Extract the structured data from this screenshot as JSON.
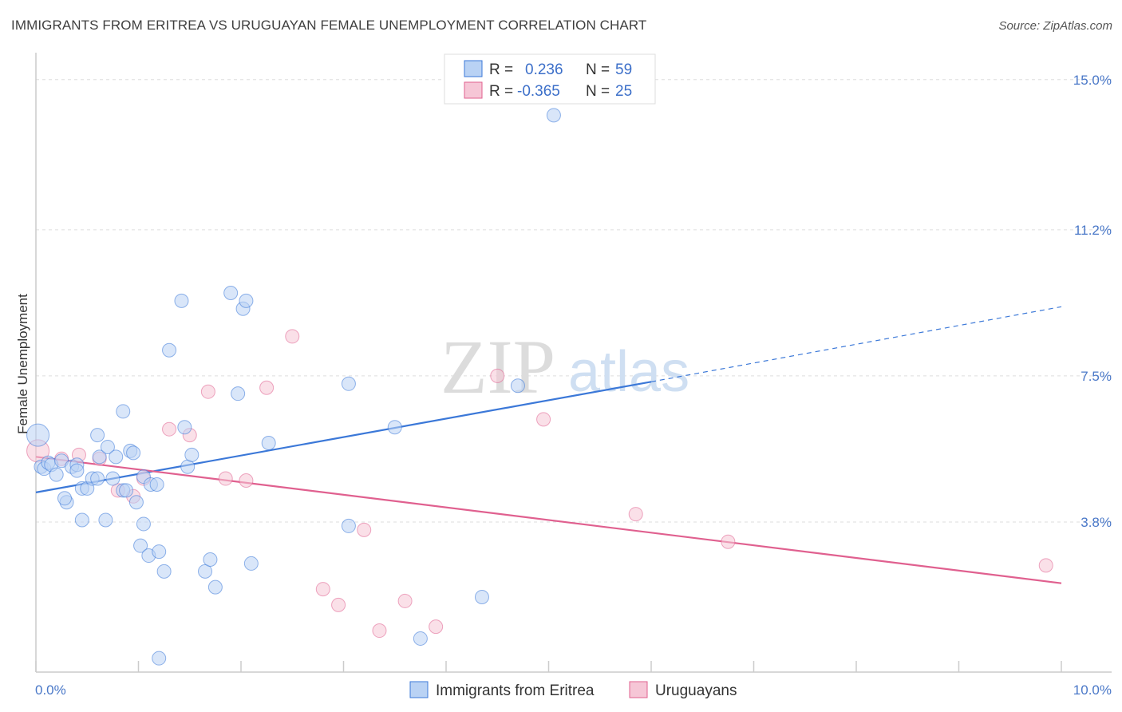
{
  "title": "IMMIGRANTS FROM ERITREA VS URUGUAYAN FEMALE UNEMPLOYMENT CORRELATION CHART",
  "source": "Source: ZipAtlas.com",
  "watermark": {
    "zip": "ZIP",
    "atlas": "atlas"
  },
  "colors": {
    "blue": "#3b78d8",
    "blue_fill": "#b9d2f4",
    "pink": "#e0608f",
    "pink_fill": "#f6c6d6",
    "grid": "#d9d9d9",
    "axis_text": "#4a78c8"
  },
  "legend": {
    "rows": [
      {
        "r_label": "R =",
        "r_value": "0.236",
        "n_label": "N =",
        "n_value": "59"
      },
      {
        "r_label": "R =",
        "r_value": "-0.365",
        "n_label": "N =",
        "n_value": "25"
      }
    ]
  },
  "chart_data": {
    "type": "scatter",
    "title": "IMMIGRANTS FROM ERITREA VS URUGUAYAN FEMALE UNEMPLOYMENT CORRELATION CHART",
    "xlabel": "",
    "ylabel": "Female Unemployment",
    "xlim": [
      0,
      10
    ],
    "ylim": [
      0,
      15.4
    ],
    "x_tick_labels": [
      "0.0%",
      "10.0%"
    ],
    "y_ticks": [
      3.8,
      7.5,
      11.2,
      15.0
    ],
    "y_tick_labels": [
      "3.8%",
      "7.5%",
      "11.2%",
      "15.0%"
    ],
    "series": [
      {
        "name": "Immigrants from Eritrea",
        "color": "#3b78d8",
        "trend": {
          "x0": 0,
          "y0": 4.55,
          "x1": 6.0,
          "y1": 7.35,
          "dash_x1": 10.0,
          "dash_y1": 9.25
        },
        "points": [
          [
            0.05,
            5.2
          ],
          [
            0.08,
            5.15
          ],
          [
            0.12,
            5.3
          ],
          [
            0.15,
            5.25
          ],
          [
            0.2,
            5.0
          ],
          [
            0.25,
            5.35
          ],
          [
            0.3,
            4.3
          ],
          [
            0.28,
            4.4
          ],
          [
            0.35,
            5.2
          ],
          [
            0.4,
            5.25
          ],
          [
            0.4,
            5.1
          ],
          [
            0.45,
            4.65
          ],
          [
            0.5,
            4.65
          ],
          [
            0.45,
            3.85
          ],
          [
            0.55,
            4.9
          ],
          [
            0.6,
            4.9
          ],
          [
            0.6,
            6.0
          ],
          [
            0.62,
            5.45
          ],
          [
            0.68,
            3.85
          ],
          [
            0.7,
            5.7
          ],
          [
            0.75,
            4.9
          ],
          [
            0.78,
            5.45
          ],
          [
            0.85,
            4.6
          ],
          [
            0.85,
            6.6
          ],
          [
            0.88,
            4.6
          ],
          [
            0.92,
            5.6
          ],
          [
            0.95,
            5.55
          ],
          [
            0.98,
            4.3
          ],
          [
            1.02,
            3.2
          ],
          [
            1.05,
            3.75
          ],
          [
            1.05,
            4.95
          ],
          [
            1.1,
            2.95
          ],
          [
            1.12,
            4.75
          ],
          [
            1.18,
            4.75
          ],
          [
            1.2,
            3.05
          ],
          [
            1.25,
            2.55
          ],
          [
            1.3,
            8.15
          ],
          [
            1.42,
            9.4
          ],
          [
            1.45,
            6.2
          ],
          [
            1.48,
            5.2
          ],
          [
            1.52,
            5.5
          ],
          [
            1.65,
            2.55
          ],
          [
            1.7,
            2.85
          ],
          [
            1.75,
            2.15
          ],
          [
            1.9,
            9.6
          ],
          [
            2.02,
            9.2
          ],
          [
            2.05,
            9.4
          ],
          [
            1.97,
            7.05
          ],
          [
            2.1,
            2.75
          ],
          [
            2.27,
            5.8
          ],
          [
            3.05,
            7.3
          ],
          [
            3.05,
            3.7
          ],
          [
            3.5,
            6.2
          ],
          [
            3.75,
            0.85
          ],
          [
            4.35,
            1.9
          ],
          [
            4.7,
            7.25
          ],
          [
            5.05,
            14.1
          ],
          [
            0.02,
            6.0
          ],
          [
            1.2,
            0.35
          ]
        ]
      },
      {
        "name": "Uruguayans",
        "color": "#e0608f",
        "trend": {
          "x0": 0,
          "y0": 5.45,
          "x1": 10.0,
          "y1": 2.25
        },
        "points": [
          [
            0.02,
            5.6
          ],
          [
            0.25,
            5.4
          ],
          [
            0.42,
            5.5
          ],
          [
            0.62,
            5.4
          ],
          [
            0.8,
            4.6
          ],
          [
            0.95,
            4.45
          ],
          [
            1.05,
            4.9
          ],
          [
            1.3,
            6.15
          ],
          [
            1.5,
            6.0
          ],
          [
            1.68,
            7.1
          ],
          [
            1.85,
            4.9
          ],
          [
            2.05,
            4.85
          ],
          [
            2.25,
            7.2
          ],
          [
            2.5,
            8.5
          ],
          [
            2.8,
            2.1
          ],
          [
            2.95,
            1.7
          ],
          [
            3.2,
            3.6
          ],
          [
            3.35,
            1.05
          ],
          [
            3.6,
            1.8
          ],
          [
            3.9,
            1.15
          ],
          [
            4.5,
            7.5
          ],
          [
            4.95,
            6.4
          ],
          [
            5.85,
            4.0
          ],
          [
            6.75,
            3.3
          ],
          [
            9.85,
            2.7
          ]
        ]
      }
    ]
  },
  "bottom_legend": {
    "items": [
      {
        "label": "Immigrants from Eritrea",
        "color": "#3b78d8"
      },
      {
        "label": "Uruguayans",
        "color": "#e0608f"
      }
    ]
  }
}
